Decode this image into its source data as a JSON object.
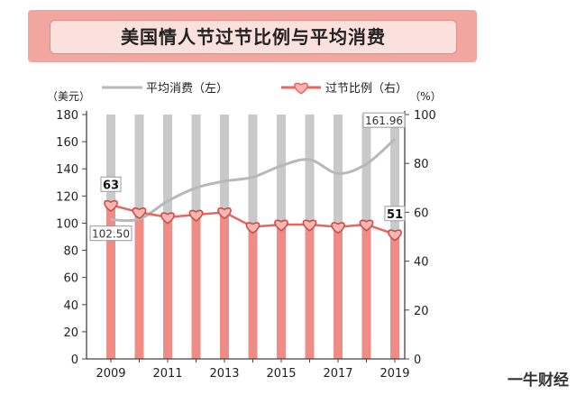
{
  "title": "美国情人节过节比例与平均消费",
  "watermark_text": "一牛财经",
  "chart_data": {
    "type": "line",
    "x": [
      2009,
      2010,
      2011,
      2012,
      2013,
      2014,
      2015,
      2016,
      2017,
      2018,
      2019
    ],
    "xticks": [
      "2009",
      "2011",
      "2013",
      "2015",
      "2017",
      "2019"
    ],
    "left_axis": {
      "unit": "（美元）",
      "range": [
        0,
        180
      ],
      "ticks": [
        "0",
        "20",
        "40",
        "60",
        "80",
        "100",
        "120",
        "140",
        "160",
        "180"
      ]
    },
    "right_axis": {
      "unit": "（%）",
      "range": [
        0,
        100
      ],
      "ticks": [
        "0",
        "20",
        "40",
        "60",
        "80",
        "100"
      ]
    },
    "series": [
      {
        "name": "平均消费（左）",
        "axis": "left",
        "color": "#b8b8b8",
        "values": [
          102.5,
          103.0,
          116.2,
          126.0,
          130.9,
          133.9,
          142.3,
          146.8,
          136.6,
          143.6,
          161.96
        ]
      },
      {
        "name": "过节比例（右）",
        "axis": "right",
        "color": "#e8665f",
        "values": [
          63,
          60,
          58,
          59,
          60,
          54,
          55,
          55,
          54,
          55,
          51
        ]
      }
    ],
    "annotations": [
      {
        "text": "63",
        "series": 1,
        "index": 0
      },
      {
        "text": "51",
        "series": 1,
        "index": 10
      },
      {
        "text": "102.50",
        "series": 0,
        "index": 0
      },
      {
        "text": "161.96",
        "series": 0,
        "index": 10
      }
    ]
  }
}
